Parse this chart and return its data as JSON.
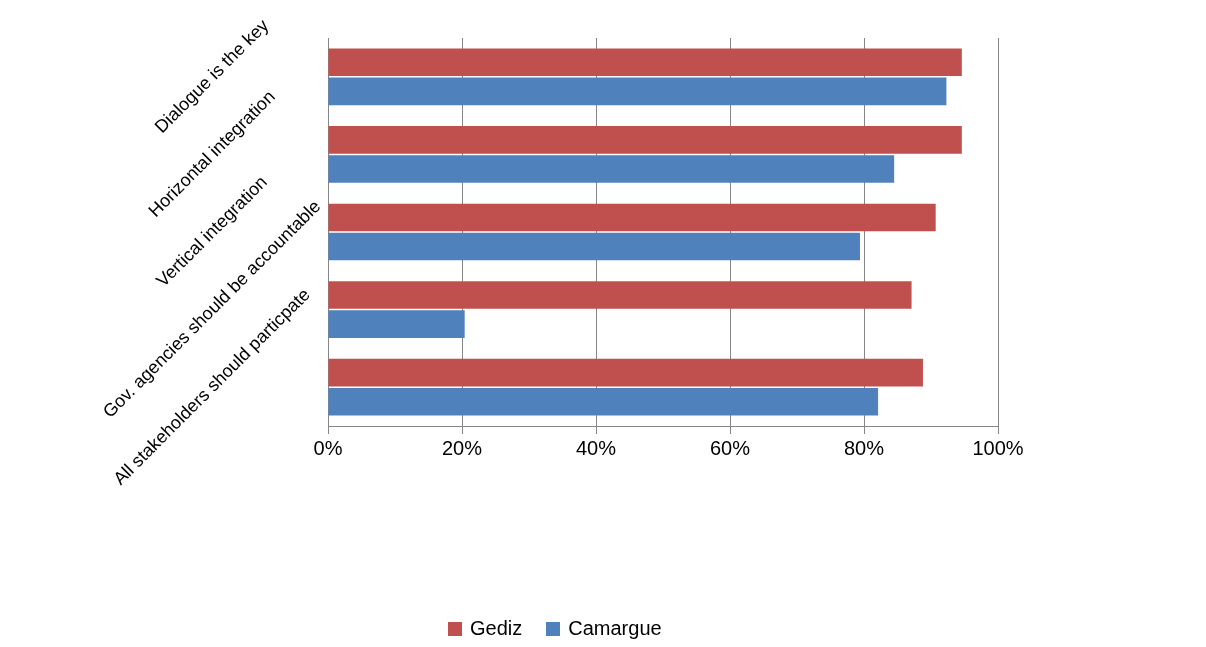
{
  "chart_data": {
    "type": "bar",
    "orientation": "horizontal",
    "categories": [
      "Dialogue is the key",
      "Horizontal integration",
      "Vertical integration",
      "Gov. agencies should be accountable",
      "All stakeholders should particpate"
    ],
    "series": [
      {
        "name": "Gediz",
        "color": "#c0504d",
        "values": [
          94.6,
          94.6,
          90.7,
          87.1,
          88.8
        ]
      },
      {
        "name": "Camargue",
        "color": "#4f81bd",
        "values": [
          92.3,
          84.5,
          79.4,
          20.4,
          82.1
        ]
      }
    ],
    "xlim": [
      0,
      100
    ],
    "xticks": [
      {
        "value": 0,
        "label": "0%"
      },
      {
        "value": 20,
        "label": "20%"
      },
      {
        "value": 40,
        "label": "40%"
      },
      {
        "value": 60,
        "label": "60%"
      },
      {
        "value": 80,
        "label": "80%"
      },
      {
        "value": 100,
        "label": "100%"
      }
    ],
    "grid": "x",
    "legend": "bottom"
  }
}
